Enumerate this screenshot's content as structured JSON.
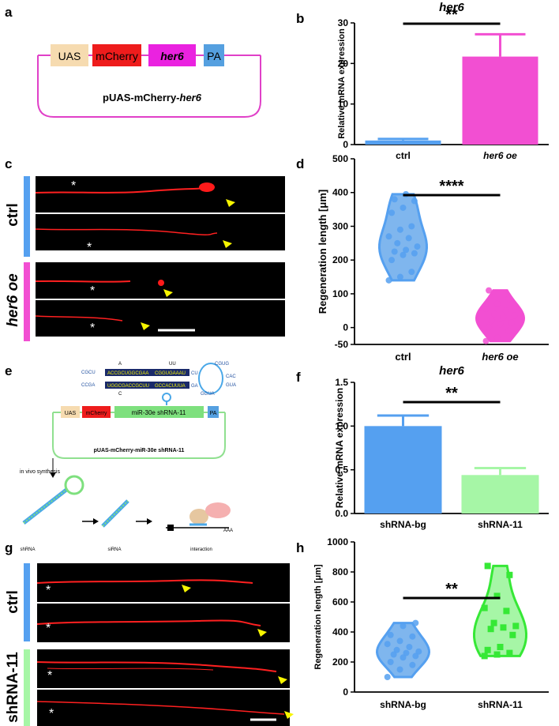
{
  "panels": {
    "a": "a",
    "b": "b",
    "c": "c",
    "d": "d",
    "e": "e",
    "f": "f",
    "g": "g",
    "h": "h"
  },
  "colors": {
    "ctrl_blue": "#55a0f0",
    "her6_magenta": "#f24fd2",
    "shrna11_green": "#36e836",
    "shrna11_bar": "#a6f6a6",
    "violin_blue": "#7fb6ee",
    "red_axon": "#ff1a1a",
    "arrow_yellow": "#f7f500"
  },
  "plasmid_a": {
    "elements": [
      "UAS",
      "mCherry",
      "her6",
      "PA"
    ],
    "name_prefix": "pUAS-mCherry-",
    "name_gene": "her6"
  },
  "images_c": {
    "group_labels": [
      "ctrl",
      "her6 oe"
    ],
    "asterisk": "*"
  },
  "images_g": {
    "group_labels": [
      "ctrl",
      "shRNA-11"
    ],
    "asterisk": "*"
  },
  "hairpin": {
    "top_loop": "A",
    "top_loop2": "UU",
    "top_seq1": "CGCU",
    "top_seq2": "ACCGCUGGCGAA",
    "top_seq3": "CGGUGAAAU",
    "top_seq4": "CU",
    "bot_seq1": "CCGA",
    "bot_seq2": "UGGCGACCGCUU",
    "bot_seq3": "GCCACUUUA",
    "bot_seq4": "GA",
    "bottom_loop": "C",
    "loop_right1": "CGUG",
    "loop_right2": "CAC",
    "loop_right3": "GUA",
    "loop_right4": "GGUA"
  },
  "plasmid_e": {
    "uas": "UAS",
    "mcherry": "mCherry",
    "shrna": "miR-30e shRNA-11",
    "pa": "PA",
    "name": "pUAS-mCherry-miR-30e shRNA-11",
    "in_vivo": "in vivo synthesis",
    "labels": [
      "shRNA",
      "siRNA",
      "interaction"
    ],
    "aaa": "AAA"
  },
  "chart_data": [
    {
      "panel": "b",
      "type": "bar",
      "title": "her6",
      "ylabel": "Relative mRNA expression",
      "categories": [
        "ctrl",
        "her6 oe"
      ],
      "values": [
        1.0,
        21.7
      ],
      "errors": [
        0.4,
        5.5
      ],
      "ylim": [
        0,
        30
      ],
      "yticks": [
        "0",
        "10",
        "20",
        "30"
      ],
      "significance": "**"
    },
    {
      "panel": "d",
      "type": "scatter",
      "plot": "violin",
      "ylabel": "Regeneration length [μm]",
      "categories": [
        "ctrl",
        "her6 oe"
      ],
      "ylim": [
        -50,
        500
      ],
      "yticks": [
        "500",
        "400",
        "300",
        "200",
        "100",
        "0",
        "-50"
      ],
      "series": [
        {
          "values": [
            395,
            380,
            375,
            355,
            340,
            300,
            290,
            270,
            265,
            250,
            240,
            230,
            225,
            220,
            215,
            200,
            165,
            150,
            140
          ]
        },
        {
          "values": [
            110,
            85,
            70,
            55,
            50,
            40,
            35,
            30,
            20,
            15,
            10,
            0,
            -10,
            -30,
            -40
          ]
        }
      ],
      "significance": "****"
    },
    {
      "panel": "f",
      "type": "bar",
      "title": "her6",
      "ylabel": "Relative mRNA expression",
      "categories": [
        "shRNA-bg",
        "shRNA-11"
      ],
      "values": [
        1.0,
        0.44
      ],
      "errors": [
        0.12,
        0.08
      ],
      "ylim": [
        0,
        1.5
      ],
      "yticks": [
        "0.0",
        "0.5",
        "1.0",
        "1.5"
      ],
      "significance": "**"
    },
    {
      "panel": "h",
      "type": "scatter",
      "plot": "violin",
      "ylabel": "Regeneration length [μm]",
      "categories": [
        "shRNA-bg",
        "shRNA-11"
      ],
      "ylim": [
        0,
        1000
      ],
      "yticks": [
        "0",
        "200",
        "400",
        "600",
        "800",
        "1000"
      ],
      "series": [
        {
          "values": [
            460,
            440,
            380,
            370,
            340,
            320,
            300,
            280,
            270,
            260,
            250,
            240,
            230,
            200,
            180,
            150,
            100
          ]
        },
        {
          "values": [
            840,
            780,
            640,
            560,
            540,
            460,
            440,
            430,
            420,
            380,
            300,
            280,
            260,
            250,
            240
          ]
        }
      ],
      "significance": "**"
    }
  ]
}
